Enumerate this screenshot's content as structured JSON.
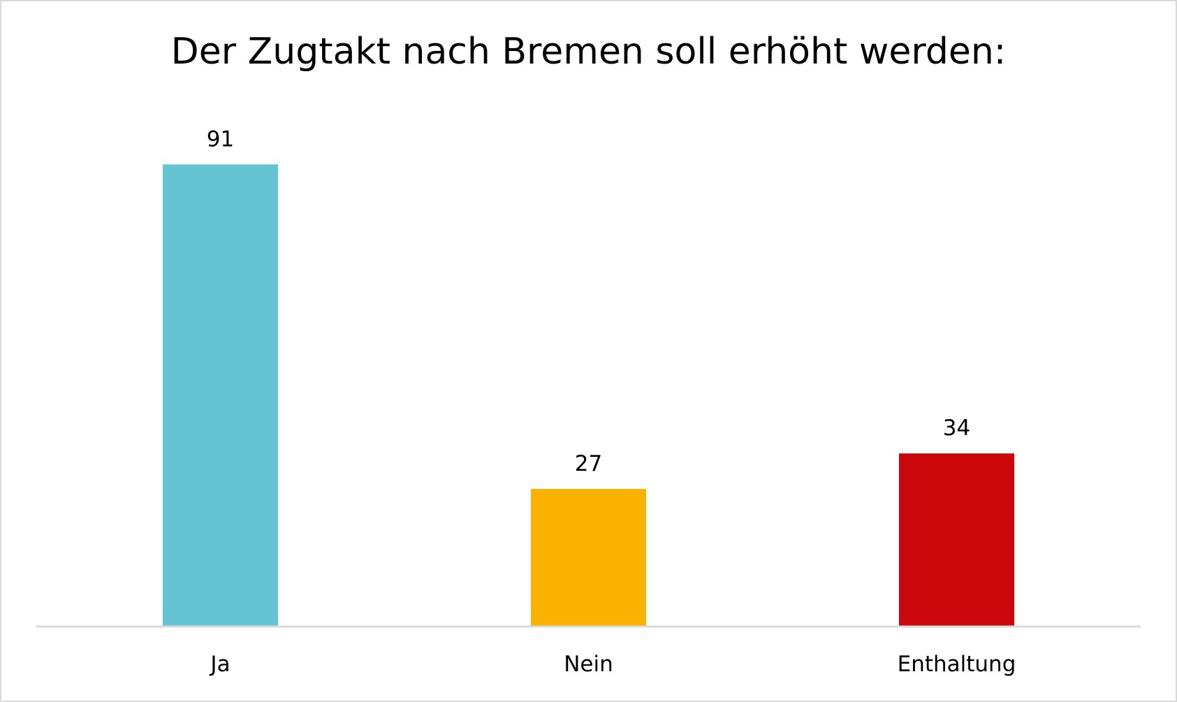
{
  "chart_data": {
    "type": "bar",
    "title": "Der Zugtakt nach Bremen soll erhöht werden:",
    "categories": [
      "Ja",
      "Nein",
      "Enthaltung"
    ],
    "values": [
      91,
      27,
      34
    ],
    "colors": [
      "#65c4d4",
      "#f9b200",
      "#cc070b"
    ],
    "xlabel": "",
    "ylabel": "",
    "ylim": [
      0,
      100
    ],
    "grid": false,
    "legend": "none",
    "data_labels": true
  }
}
